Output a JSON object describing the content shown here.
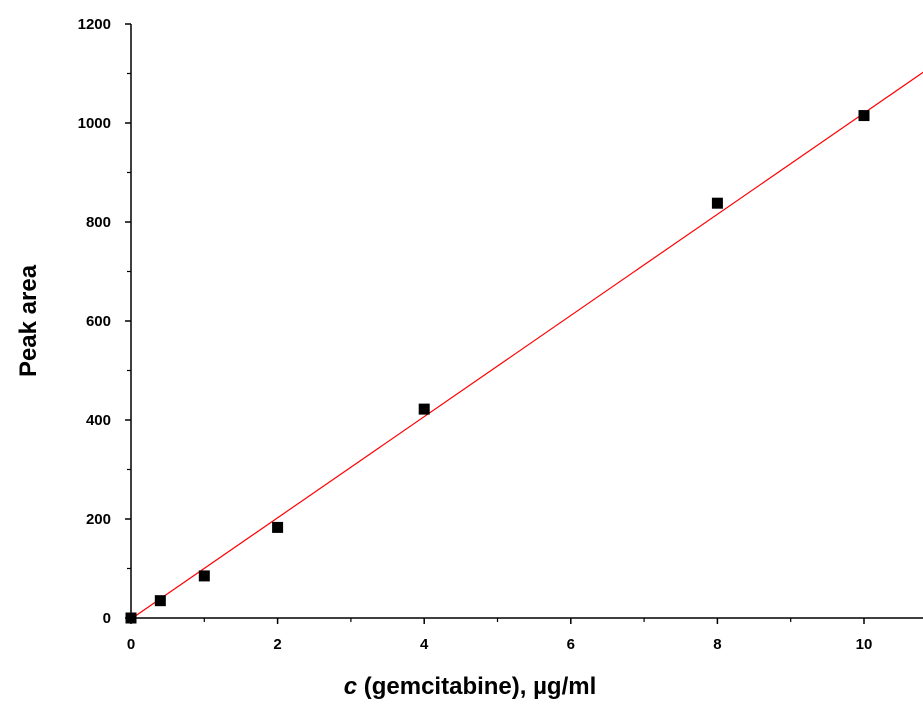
{
  "chart_data": {
    "type": "scatter",
    "title": "",
    "xlabel": "c (gemcitabine), µg/ml",
    "xlabel_parts": {
      "italic": "c",
      "rest": " (gemcitabine), µg/ml"
    },
    "ylabel": "Peak area",
    "xlim": [
      0,
      11
    ],
    "ylim": [
      0,
      1200
    ],
    "x_ticks": [
      0,
      2,
      4,
      6,
      8,
      10
    ],
    "y_ticks": [
      0,
      200,
      400,
      600,
      800,
      1000,
      1200
    ],
    "grid": false,
    "legend": "none",
    "series": [
      {
        "points": [
          {
            "x": 0,
            "y": 0
          },
          {
            "x": 0.4,
            "y": 35
          },
          {
            "x": 1,
            "y": 85
          },
          {
            "x": 2,
            "y": 183
          },
          {
            "x": 4,
            "y": 422
          },
          {
            "x": 8,
            "y": 838
          },
          {
            "x": 10,
            "y": 1015
          }
        ],
        "marker": "square",
        "color": "#000000"
      }
    ],
    "fit_line": {
      "type": "linear",
      "slope": 102.2,
      "intercept": -2,
      "color": "#ff0000"
    }
  }
}
